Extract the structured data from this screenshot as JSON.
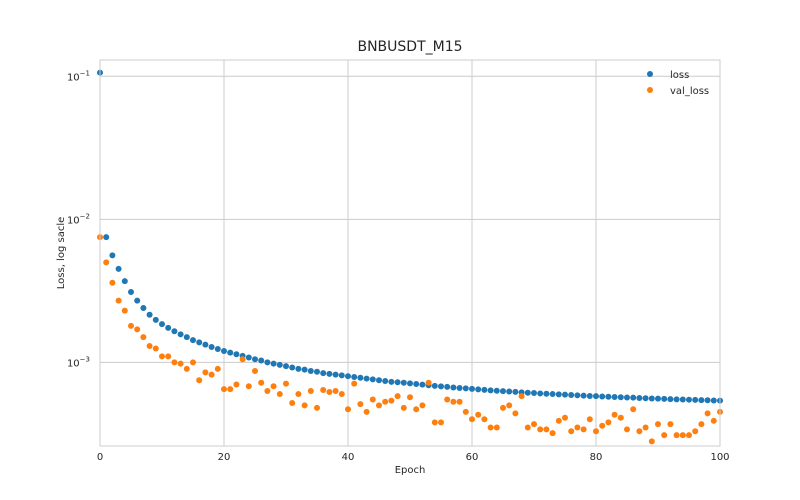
{
  "chart_data": {
    "type": "scatter",
    "title": "BNBUSDT_M15",
    "xlabel": "Epoch",
    "ylabel": "Loss, log sacle",
    "xlim": [
      0,
      100
    ],
    "ylim": [
      0.00026,
      0.13
    ],
    "yscale": "log",
    "grid": true,
    "legend_position": "top-right",
    "x_ticks": [
      0,
      20,
      40,
      60,
      80,
      100
    ],
    "y_ticks": [
      {
        "value": 0.1,
        "base": "10",
        "exp": "−1"
      },
      {
        "value": 0.01,
        "base": "10",
        "exp": "−2"
      },
      {
        "value": 0.001,
        "base": "10",
        "exp": "−3"
      }
    ],
    "series": [
      {
        "name": "loss",
        "color": "#1f77b4",
        "x": [
          0,
          1,
          2,
          3,
          4,
          5,
          6,
          7,
          8,
          9,
          10,
          11,
          12,
          13,
          14,
          15,
          16,
          17,
          18,
          19,
          20,
          21,
          22,
          23,
          24,
          25,
          26,
          27,
          28,
          29,
          30,
          31,
          32,
          33,
          34,
          35,
          36,
          37,
          38,
          39,
          40,
          41,
          42,
          43,
          44,
          45,
          46,
          47,
          48,
          49,
          50,
          51,
          52,
          53,
          54,
          55,
          56,
          57,
          58,
          59,
          60,
          61,
          62,
          63,
          64,
          65,
          66,
          67,
          68,
          69,
          70,
          71,
          72,
          73,
          74,
          75,
          76,
          77,
          78,
          79,
          80,
          81,
          82,
          83,
          84,
          85,
          86,
          87,
          88,
          89,
          90,
          91,
          92,
          93,
          94,
          95,
          96,
          97,
          98,
          99,
          100
        ],
        "y": [
          0.106,
          0.0075,
          0.0056,
          0.0045,
          0.0037,
          0.0031,
          0.0027,
          0.0024,
          0.00215,
          0.00198,
          0.00185,
          0.00174,
          0.00165,
          0.00157,
          0.0015,
          0.00143,
          0.00138,
          0.00133,
          0.00128,
          0.00124,
          0.0012,
          0.00117,
          0.00114,
          0.00111,
          0.00108,
          0.00105,
          0.00103,
          0.001,
          0.00098,
          0.00096,
          0.00094,
          0.00092,
          0.0009,
          0.00089,
          0.00087,
          0.00086,
          0.00084,
          0.00083,
          0.00082,
          0.00081,
          0.0008,
          0.00079,
          0.00078,
          0.00077,
          0.00076,
          0.00075,
          0.00074,
          0.00073,
          0.000725,
          0.00072,
          0.000712,
          0.000705,
          0.000698,
          0.000691,
          0.000685,
          0.000679,
          0.000673,
          0.000667,
          0.000662,
          0.000657,
          0.000652,
          0.000647,
          0.000642,
          0.000637,
          0.000633,
          0.000629,
          0.000625,
          0.000621,
          0.000617,
          0.000613,
          0.00061,
          0.000606,
          0.000603,
          0.0006,
          0.000597,
          0.000594,
          0.000591,
          0.000588,
          0.000585,
          0.000582,
          0.00058,
          0.000577,
          0.000575,
          0.000572,
          0.00057,
          0.000568,
          0.000566,
          0.000563,
          0.000561,
          0.000559,
          0.000557,
          0.000555,
          0.000553,
          0.000551,
          0.00055,
          0.000548,
          0.000546,
          0.000544,
          0.000543,
          0.000541,
          0.00054
        ]
      },
      {
        "name": "val_loss",
        "color": "#ff7f0e",
        "x": [
          0,
          1,
          2,
          3,
          4,
          5,
          6,
          7,
          8,
          9,
          10,
          11,
          12,
          13,
          14,
          15,
          16,
          17,
          18,
          19,
          20,
          21,
          22,
          23,
          24,
          25,
          26,
          27,
          28,
          29,
          30,
          31,
          32,
          33,
          34,
          35,
          36,
          37,
          38,
          39,
          40,
          41,
          42,
          43,
          44,
          45,
          46,
          47,
          48,
          49,
          50,
          51,
          52,
          53,
          54,
          55,
          56,
          57,
          58,
          59,
          60,
          61,
          62,
          63,
          64,
          65,
          66,
          67,
          68,
          69,
          70,
          71,
          72,
          73,
          74,
          75,
          76,
          77,
          78,
          79,
          80,
          81,
          82,
          83,
          84,
          85,
          86,
          87,
          88,
          89,
          90,
          91,
          92,
          93,
          94,
          95,
          96,
          97,
          98,
          99,
          100
        ],
        "y": [
          0.0075,
          0.005,
          0.0036,
          0.0027,
          0.0023,
          0.0018,
          0.0017,
          0.0015,
          0.0013,
          0.00125,
          0.0011,
          0.0011,
          0.001,
          0.00098,
          0.0009,
          0.001,
          0.00075,
          0.00085,
          0.00082,
          0.0009,
          0.00065,
          0.00065,
          0.0007,
          0.00105,
          0.00068,
          0.00087,
          0.00072,
          0.00063,
          0.00068,
          0.0006,
          0.00071,
          0.00052,
          0.0006,
          0.0005,
          0.00063,
          0.00048,
          0.00064,
          0.00062,
          0.00063,
          0.0006,
          0.00047,
          0.00071,
          0.00051,
          0.00045,
          0.00055,
          0.0005,
          0.00053,
          0.00054,
          0.00058,
          0.00048,
          0.00057,
          0.00047,
          0.0005,
          0.00072,
          0.00038,
          0.00038,
          0.00055,
          0.00053,
          0.00053,
          0.00045,
          0.0004,
          0.00043,
          0.0004,
          0.00035,
          0.00035,
          0.00048,
          0.0005,
          0.00044,
          0.00058,
          0.00035,
          0.00037,
          0.00034,
          0.00034,
          0.00032,
          0.00039,
          0.00041,
          0.00033,
          0.00035,
          0.00034,
          0.0004,
          0.00033,
          0.00036,
          0.00038,
          0.00043,
          0.00041,
          0.00034,
          0.00047,
          0.00033,
          0.00035,
          0.00028,
          0.00037,
          0.00031,
          0.00037,
          0.00031,
          0.00031,
          0.00031,
          0.00033,
          0.00037,
          0.00044,
          0.00039,
          0.00045
        ]
      }
    ]
  }
}
